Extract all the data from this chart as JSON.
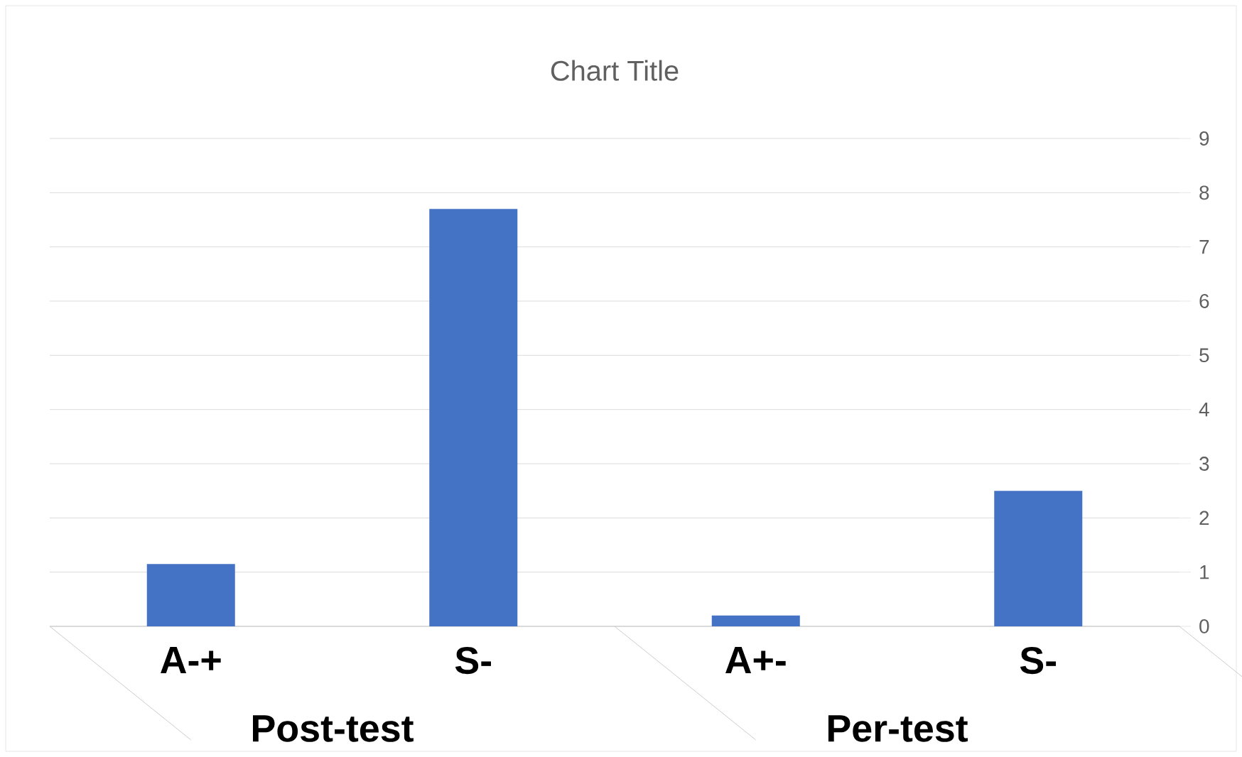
{
  "chart_data": {
    "type": "bar",
    "title": "Chart Title",
    "categories": [
      "A-+",
      "S-",
      "A+-",
      "S-"
    ],
    "values": [
      1.15,
      7.7,
      0.2,
      2.5
    ],
    "color": "#4472c4",
    "ylim": [
      0,
      9
    ],
    "yticks": [
      0,
      1,
      2,
      3,
      4,
      5,
      6,
      7,
      8,
      9
    ],
    "grid": "y",
    "annotations": [
      "Post-test",
      "Per-test"
    ]
  }
}
